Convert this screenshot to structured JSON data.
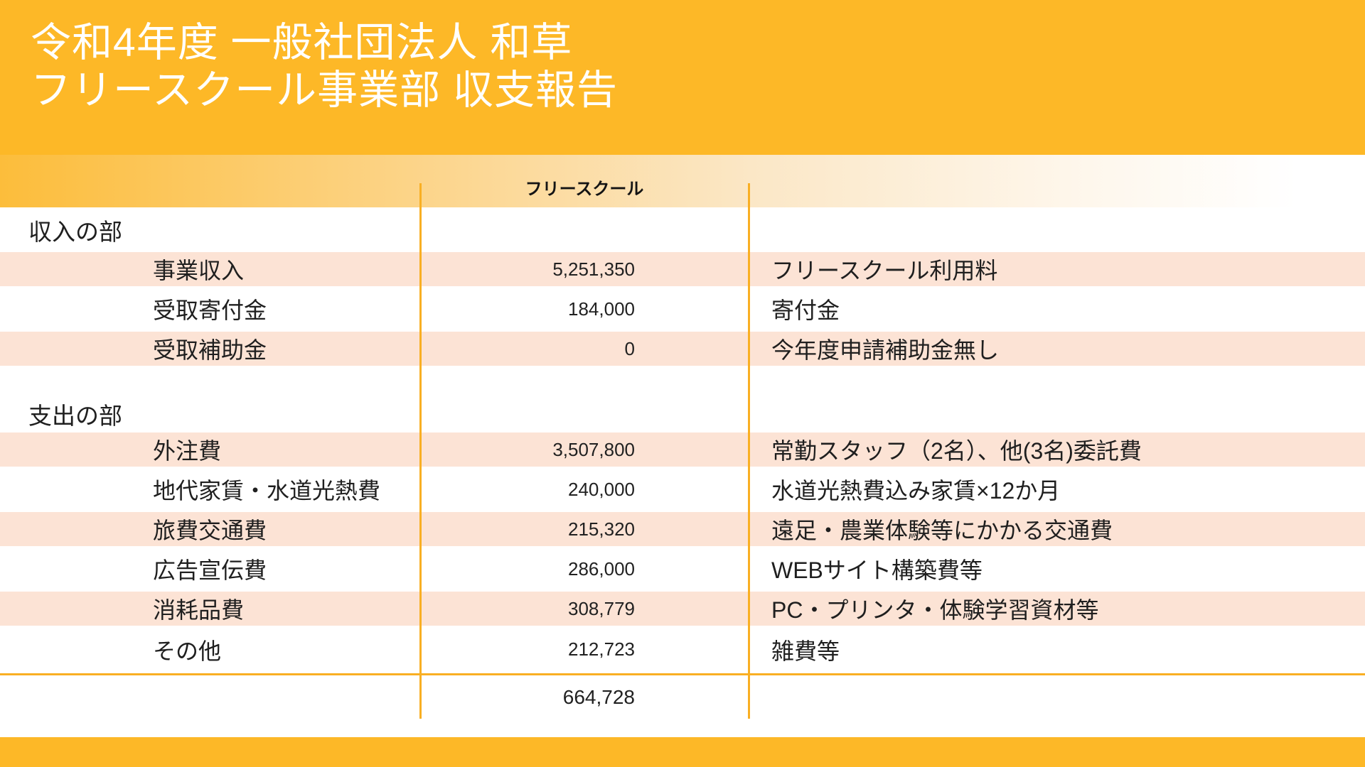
{
  "slide": {
    "title_line1": "令和4年度 一般社団法人 和草",
    "title_line2": "フリースクール事業部 収支報告",
    "column_header": "フリースクール"
  },
  "table": {
    "sections": [
      {
        "label": "収入の部",
        "rows": [
          {
            "item": "事業収入",
            "amount": "5,251,350",
            "note": "フリースクール利用料"
          },
          {
            "item": "受取寄付金",
            "amount": "184,000",
            "note": "寄付金"
          },
          {
            "item": "受取補助金",
            "amount": "0",
            "note": "今年度申請補助金無し"
          }
        ]
      },
      {
        "label": "支出の部",
        "rows": [
          {
            "item": "外注費",
            "amount": "3,507,800",
            "note": "常勤スタッフ（2名）、他(3名)委託費"
          },
          {
            "item": "地代家賃・水道光熱費",
            "amount": "240,000",
            "note": "水道光熱費込み家賃×12か月"
          },
          {
            "item": "旅費交通費",
            "amount": "215,320",
            "note": "遠足・農業体験等にかかる交通費"
          },
          {
            "item": "広告宣伝費",
            "amount": "286,000",
            "note": "WEBサイト構築費等"
          },
          {
            "item": "消耗品費",
            "amount": "308,779",
            "note": "PC・プリンタ・体験学習資材等"
          },
          {
            "item": "その他",
            "amount": "212,723",
            "note": "雑費等"
          }
        ]
      }
    ],
    "total_row": {
      "amount": "664,728"
    }
  },
  "colors": {
    "header_orange": "#FDB827",
    "row_peach": "#FCE3D5",
    "line_orange": "#F9AF23",
    "text_dark": "#1F1F1F",
    "title_white": "#FFFFFF"
  }
}
